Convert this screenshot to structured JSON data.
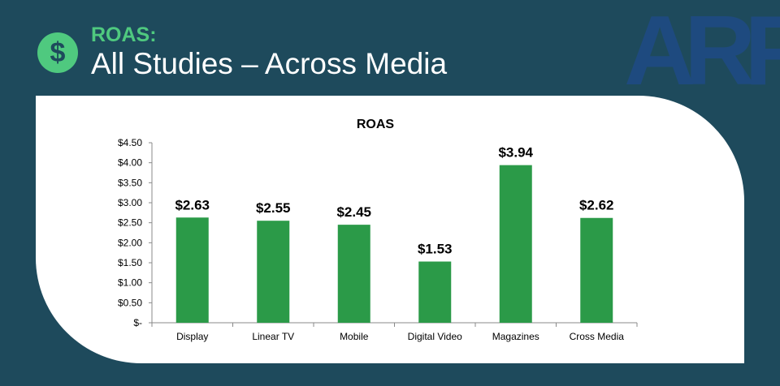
{
  "header": {
    "subtitle": "ROAS:",
    "title": "All Studies – Across Media",
    "badge_symbol": "$",
    "badge_icon": "dollar-icon"
  },
  "logo": {
    "text": "ARF"
  },
  "colors": {
    "background": "#1e4a5c",
    "accent_green": "#4fc97f",
    "bar": "#2b9a48",
    "panel": "#ffffff"
  },
  "chart_data": {
    "type": "bar",
    "title": "ROAS",
    "categories": [
      "Display",
      "Linear TV",
      "Mobile",
      "Digital Video",
      "Magazines",
      "Cross Media"
    ],
    "values": [
      2.63,
      2.55,
      2.45,
      1.53,
      3.94,
      2.62
    ],
    "data_labels": [
      "$2.63",
      "$2.55",
      "$2.45",
      "$1.53",
      "$3.94",
      "$2.62"
    ],
    "yticks": [
      0,
      0.5,
      1.0,
      1.5,
      2.0,
      2.5,
      3.0,
      3.5,
      4.0,
      4.5
    ],
    "ytick_labels": [
      "$-",
      "$0.50",
      "$1.00",
      "$1.50",
      "$2.00",
      "$2.50",
      "$3.00",
      "$3.50",
      "$4.00",
      "$4.50"
    ],
    "ylim": [
      0,
      4.5
    ],
    "xlabel": "",
    "ylabel": "",
    "grid": false,
    "legend": "none"
  }
}
